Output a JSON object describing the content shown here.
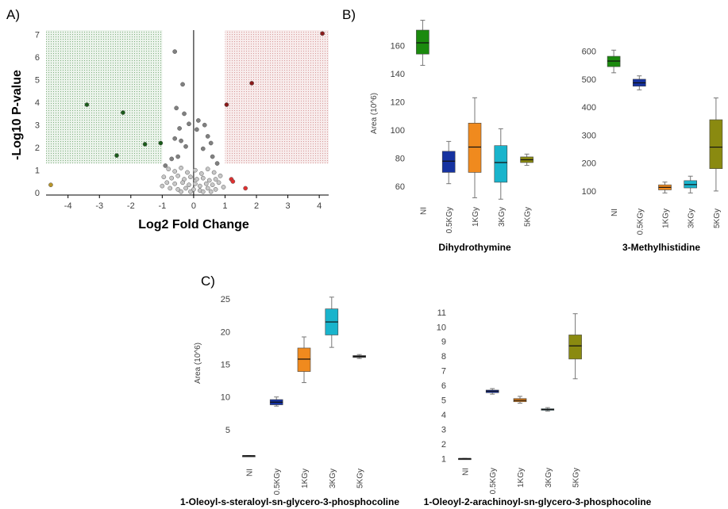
{
  "panels": {
    "a": "A)",
    "b": "B)",
    "c": "C)"
  },
  "volcano": {
    "xlabel": "Log2 Fold Change",
    "ylabel": "-Log10 P-value"
  },
  "box_ylabel": "Area (10^6)",
  "chart_data": [
    {
      "type": "scatter",
      "panel": "A",
      "xlabel": "Log2 Fold Change",
      "ylabel": "-Log10 P-value",
      "xlim": [
        -4.7,
        4.3
      ],
      "ylim": [
        -0.1,
        7.2
      ],
      "xticks": [
        "-4",
        "-3",
        "-2",
        "-1",
        "0",
        "1",
        "2",
        "3",
        "4"
      ],
      "yticks": [
        "0",
        "1",
        "2",
        "3",
        "4",
        "5",
        "6",
        "7"
      ],
      "regions": [
        {
          "side": "down",
          "x": [
            -4.7,
            -1
          ],
          "y": [
            1.3,
            7.2
          ],
          "color": "#8fbf8f"
        },
        {
          "side": "up",
          "x": [
            1,
            4.3
          ],
          "y": [
            1.3,
            7.2
          ],
          "color": "#e0a0a0"
        }
      ],
      "series": [
        {
          "color": "#1a5c1a",
          "points": [
            [
              -3.4,
              3.9
            ],
            [
              -2.25,
              3.55
            ],
            [
              -1.55,
              2.15
            ],
            [
              -1.05,
              2.2
            ],
            [
              -2.45,
              1.65
            ]
          ]
        },
        {
          "color": "#8b1a1a",
          "points": [
            [
              4.1,
              7.05
            ],
            [
              1.85,
              4.85
            ],
            [
              1.05,
              3.9
            ]
          ]
        },
        {
          "color": "#e03030",
          "points": [
            [
              1.2,
              0.6
            ],
            [
              1.25,
              0.5
            ],
            [
              1.65,
              0.2
            ]
          ]
        },
        {
          "color": "#b8952a",
          "points": [
            [
              -4.55,
              0.35
            ]
          ]
        },
        {
          "color": "#808080",
          "points": [
            [
              -0.6,
              6.25
            ],
            [
              -0.35,
              4.8
            ],
            [
              -0.55,
              3.75
            ],
            [
              -0.3,
              3.5
            ],
            [
              -0.15,
              3.05
            ],
            [
              0.15,
              3.2
            ],
            [
              0.35,
              3.0
            ],
            [
              -0.45,
              2.85
            ],
            [
              0.1,
              2.8
            ],
            [
              -0.6,
              2.4
            ],
            [
              -0.4,
              2.3
            ],
            [
              0.45,
              2.5
            ],
            [
              0.55,
              2.2
            ],
            [
              -0.25,
              2.05
            ],
            [
              0.3,
              1.95
            ],
            [
              -0.7,
              1.5
            ],
            [
              -0.5,
              1.6
            ],
            [
              0.6,
              1.6
            ],
            [
              0.75,
              1.3
            ],
            [
              -0.9,
              1.2
            ]
          ]
        },
        {
          "color": "#c8c8c8",
          "points": [
            [
              -0.8,
              1.05
            ],
            [
              -0.6,
              0.95
            ],
            [
              -0.4,
              1.1
            ],
            [
              -0.2,
              0.9
            ],
            [
              0.05,
              1.0
            ],
            [
              0.25,
              0.85
            ],
            [
              0.45,
              1.05
            ],
            [
              0.65,
              0.9
            ],
            [
              0.85,
              0.75
            ],
            [
              -0.95,
              0.7
            ],
            [
              -0.7,
              0.65
            ],
            [
              -0.5,
              0.75
            ],
            [
              -0.3,
              0.6
            ],
            [
              -0.1,
              0.7
            ],
            [
              0.1,
              0.6
            ],
            [
              0.3,
              0.65
            ],
            [
              0.5,
              0.55
            ],
            [
              0.7,
              0.6
            ],
            [
              -0.85,
              0.45
            ],
            [
              -0.6,
              0.4
            ],
            [
              -0.35,
              0.45
            ],
            [
              -0.15,
              0.35
            ],
            [
              0.05,
              0.4
            ],
            [
              0.2,
              0.3
            ],
            [
              0.4,
              0.4
            ],
            [
              0.6,
              0.35
            ],
            [
              0.8,
              0.45
            ],
            [
              -0.75,
              0.2
            ],
            [
              -0.5,
              0.15
            ],
            [
              -0.25,
              0.2
            ],
            [
              0.0,
              0.15
            ],
            [
              0.2,
              0.1
            ],
            [
              0.45,
              0.2
            ],
            [
              0.7,
              0.15
            ],
            [
              -0.4,
              0.05
            ],
            [
              -0.1,
              0.05
            ],
            [
              0.3,
              0.05
            ],
            [
              0.55,
              0.05
            ],
            [
              -1.0,
              0.3
            ],
            [
              0.95,
              0.25
            ]
          ]
        }
      ]
    },
    {
      "type": "box",
      "panel": "B",
      "title": "Dihydrothymine",
      "ylabel": "Area (10^6)",
      "ylim": [
        50,
        180
      ],
      "yticks": [
        60,
        80,
        100,
        120,
        140,
        160
      ],
      "categories": [
        "NI",
        "0.5KGy",
        "1KGy",
        "3KGy",
        "5KGy"
      ],
      "colors": [
        "#1b8a0e",
        "#1632a0",
        "#f08a1e",
        "#19b4cc",
        "#8a8a10"
      ],
      "boxes": [
        {
          "min": 146,
          "q1": 154,
          "median": 162,
          "q3": 171,
          "max": 178
        },
        {
          "min": 62,
          "q1": 70,
          "median": 78,
          "q3": 85,
          "max": 92
        },
        {
          "min": 52,
          "q1": 70,
          "median": 88,
          "q3": 105,
          "max": 123
        },
        {
          "min": 51,
          "q1": 63,
          "median": 77,
          "q3": 89,
          "max": 101
        },
        {
          "min": 75,
          "q1": 77,
          "median": 79,
          "q3": 81,
          "max": 83
        }
      ]
    },
    {
      "type": "box",
      "panel": "B",
      "title": "3-Methylhistidine",
      "ylim": [
        60,
        670
      ],
      "yticks": [
        100,
        200,
        300,
        400,
        500,
        600
      ],
      "categories": [
        "NI",
        "0.5KGy",
        "1KGy",
        "3KGy",
        "5KGy"
      ],
      "colors": [
        "#1b8a0e",
        "#1632a0",
        "#f08a1e",
        "#19b4cc",
        "#8a8a10"
      ],
      "boxes": [
        {
          "min": 523,
          "q1": 545,
          "median": 565,
          "q3": 582,
          "max": 604
        },
        {
          "min": 462,
          "q1": 475,
          "median": 487,
          "q3": 500,
          "max": 512
        },
        {
          "min": 93,
          "q1": 104,
          "median": 113,
          "q3": 122,
          "max": 132
        },
        {
          "min": 93,
          "q1": 111,
          "median": 123,
          "q3": 137,
          "max": 153
        },
        {
          "min": 100,
          "q1": 180,
          "median": 257,
          "q3": 355,
          "max": 433
        }
      ]
    },
    {
      "type": "box",
      "panel": "C",
      "title": "1-Oleoyl-s-steraloyl-sn-glycero-3-phosphocoline",
      "ylabel": "Area (10^6)",
      "ylim": [
        0,
        26
      ],
      "yticks": [
        5,
        10,
        15,
        20,
        25
      ],
      "categories": [
        "NI",
        "0.5KGy",
        "1KGy",
        "3KGy",
        "5KGy"
      ],
      "colors": [
        "#303030",
        "#1632a0",
        "#f08a1e",
        "#19b4cc",
        "#505050"
      ],
      "boxes": [
        {
          "min": 1.0,
          "q1": 1.0,
          "median": 1.0,
          "q3": 1.0,
          "max": 1.0
        },
        {
          "min": 8.6,
          "q1": 8.8,
          "median": 9.2,
          "q3": 9.6,
          "max": 10.0
        },
        {
          "min": 12.2,
          "q1": 13.9,
          "median": 15.8,
          "q3": 17.5,
          "max": 19.2
        },
        {
          "min": 17.6,
          "q1": 19.5,
          "median": 21.5,
          "q3": 23.5,
          "max": 25.3
        },
        {
          "min": 15.9,
          "q1": 16.05,
          "median": 16.2,
          "q3": 16.35,
          "max": 16.5
        }
      ]
    },
    {
      "type": "box",
      "panel": "C",
      "title": "1-Oleoyl-2-arachinoyl-sn-glycero-3-phosphocoline",
      "ylim": [
        0.8,
        11.1
      ],
      "yticks": [
        1,
        2,
        3,
        4,
        5,
        6,
        7,
        8,
        9,
        10,
        11
      ],
      "categories": [
        "NI",
        "0.5KGy",
        "1KGy",
        "3KGy",
        "5KGy"
      ],
      "colors": [
        "#303030",
        "#1632a0",
        "#f08a1e",
        "#19b4cc",
        "#8a8a10"
      ],
      "boxes": [
        {
          "min": 1.0,
          "q1": 1.0,
          "median": 1.0,
          "q3": 1.0,
          "max": 1.0
        },
        {
          "min": 5.4,
          "q1": 5.5,
          "median": 5.6,
          "q3": 5.68,
          "max": 5.78
        },
        {
          "min": 4.78,
          "q1": 4.88,
          "median": 4.98,
          "q3": 5.1,
          "max": 5.25
        },
        {
          "min": 4.24,
          "q1": 4.3,
          "median": 4.35,
          "q3": 4.4,
          "max": 4.48
        },
        {
          "min": 6.45,
          "q1": 7.8,
          "median": 8.7,
          "q3": 9.45,
          "max": 10.9
        }
      ]
    }
  ]
}
